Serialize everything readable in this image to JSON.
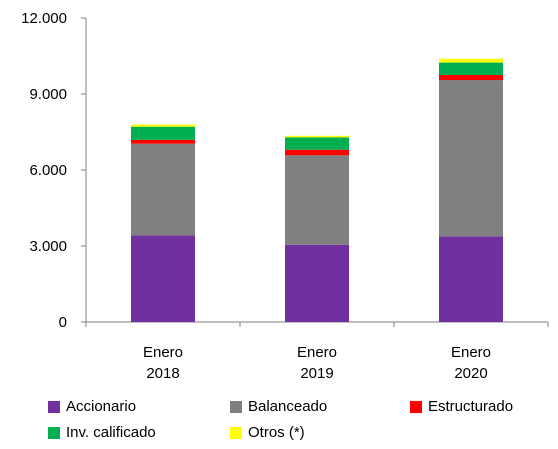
{
  "chart_data": {
    "type": "bar",
    "stacked": true,
    "categories": [
      [
        "Enero",
        "2018"
      ],
      [
        "Enero",
        "2019"
      ],
      [
        "Enero",
        "2020"
      ]
    ],
    "series": [
      {
        "name": "Accionario",
        "color": "#7030A0",
        "values": [
          3420,
          3050,
          3380
        ]
      },
      {
        "name": "Balanceado",
        "color": "#808080",
        "values": [
          3620,
          3530,
          6170
        ]
      },
      {
        "name": "Estructurado",
        "color": "#FF0000",
        "values": [
          150,
          220,
          200
        ]
      },
      {
        "name": "Inv. calificado",
        "color": "#00B050",
        "values": [
          520,
          490,
          490
        ]
      },
      {
        "name": "Otros (*)",
        "color": "#FFFF00",
        "values": [
          80,
          60,
          150
        ]
      }
    ],
    "yticks": [
      "0",
      "3.000",
      "6.000",
      "9.000",
      "12.000"
    ],
    "ylim": [
      0,
      12000
    ],
    "grid": false,
    "legend_position": "bottom"
  }
}
